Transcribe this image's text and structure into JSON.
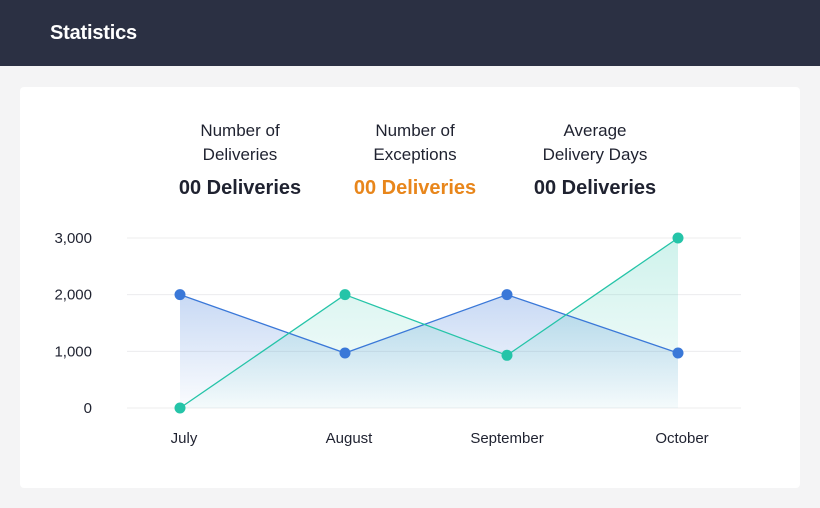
{
  "header": {
    "title": "Statistics"
  },
  "stats": [
    {
      "label": "Number of\nDeliveries",
      "value": "00 Deliveries"
    },
    {
      "label": "Number of\nExceptions",
      "value": "00 Deliveries"
    },
    {
      "label": "Average\nDelivery Days",
      "value": "00 Deliveries"
    }
  ],
  "colors": {
    "header_bg": "#2b3043",
    "accent_orange": "#e8861b",
    "series_blue": "#3a78d8",
    "series_teal": "#25c4a8"
  },
  "chart_data": {
    "type": "area",
    "categories": [
      "July",
      "August",
      "September",
      "October"
    ],
    "y_ticks": [
      "0",
      "1,000",
      "2,000",
      "3,000"
    ],
    "ylim": [
      0,
      3000
    ],
    "grid": true,
    "series": [
      {
        "values": [
          2000,
          970,
          2000,
          970
        ],
        "color": "#3a78d8"
      },
      {
        "values": [
          0,
          2000,
          930,
          3000
        ],
        "color": "#25c4a8"
      }
    ]
  }
}
